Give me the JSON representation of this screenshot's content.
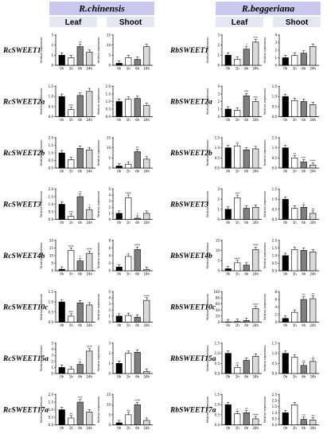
{
  "colors": {
    "band": "#c9c9ee",
    "subband": "#e3e8f2",
    "bar_0h": "#000000",
    "bar_1h": "#ffffff",
    "bar_6h": "#7f7f7f",
    "bar_24h": "#d9d9d9"
  },
  "species": [
    {
      "name": "R.chinensis",
      "tissues": [
        "Leaf",
        "Shoot"
      ]
    },
    {
      "name": "R.beggeriana",
      "tissues": [
        "Leaf",
        "Shoot"
      ]
    }
  ],
  "chart_data": {
    "type": "bar",
    "ylabel": "Relative expression",
    "categories": [
      "0h",
      "1h",
      "6h",
      "24h"
    ],
    "panels": [
      {
        "gene": "RcSWEET1",
        "leaf": {
          "values": [
            1.0,
            0.75,
            1.85,
            1.3
          ],
          "ylim": [
            0,
            3
          ],
          "ticks": [
            0,
            1,
            2,
            3
          ],
          "sig": [
            "",
            "",
            "**",
            ""
          ]
        },
        "shoot": {
          "values": [
            1.0,
            3.8,
            2.9,
            9.2
          ],
          "ylim": [
            0,
            15
          ],
          "ticks": [
            0,
            5,
            10,
            15
          ],
          "sig": [
            "",
            "",
            "",
            ""
          ]
        }
      },
      {
        "gene": "RcSWEET2a",
        "leaf": {
          "values": [
            1.0,
            0.35,
            1.05,
            1.25
          ],
          "ylim": [
            0,
            1.5
          ],
          "ticks": [
            0.0,
            0.5,
            1.0,
            1.5
          ],
          "sig": [
            "",
            "***",
            "",
            ""
          ]
        },
        "shoot": {
          "values": [
            1.0,
            1.15,
            1.2,
            0.75
          ],
          "ylim": [
            0,
            2
          ],
          "ticks": [
            0.0,
            0.5,
            1.0,
            1.5,
            2.0
          ],
          "sig": [
            "",
            "",
            "",
            ""
          ]
        }
      },
      {
        "gene": "RcSWEET2b",
        "leaf": {
          "values": [
            1.0,
            0.55,
            1.3,
            1.2
          ],
          "ylim": [
            0,
            2
          ],
          "ticks": [
            0.0,
            0.5,
            1.0,
            1.5,
            2.0
          ],
          "sig": [
            "",
            "",
            "",
            ""
          ]
        },
        "shoot": {
          "values": [
            1.0,
            1.9,
            8.1,
            4.4
          ],
          "ylim": [
            0,
            15
          ],
          "ticks": [
            0,
            5,
            10,
            15
          ],
          "sig": [
            "",
            "",
            "**",
            ""
          ]
        }
      },
      {
        "gene": "RcSWEET3",
        "leaf": {
          "values": [
            1.0,
            0.2,
            1.5,
            0.65
          ],
          "ylim": [
            0,
            2
          ],
          "ticks": [
            0.0,
            0.5,
            1.0,
            1.5,
            2.0
          ],
          "sig": [
            "",
            "***",
            "**",
            "*"
          ]
        },
        "shoot": {
          "values": [
            1.0,
            3.6,
            0.2,
            1.0
          ],
          "ylim": [
            0,
            5
          ],
          "ticks": [
            0,
            1,
            2,
            3,
            4,
            5
          ],
          "sig": [
            "",
            "****",
            "*",
            ""
          ]
        }
      },
      {
        "gene": "RcSWEET4b",
        "leaf": {
          "values": [
            1.0,
            13.5,
            6.5,
            11.5
          ],
          "ylim": [
            0,
            20
          ],
          "ticks": [
            0,
            5,
            10,
            15,
            20
          ],
          "sig": [
            "",
            "****",
            "*",
            "****"
          ]
        },
        "shoot": {
          "values": [
            1.0,
            3.8,
            5.6,
            0.3
          ],
          "ylim": [
            0,
            8
          ],
          "ticks": [
            0,
            2,
            4,
            6,
            8
          ],
          "sig": [
            "",
            "",
            "****",
            ""
          ]
        }
      },
      {
        "gene": "RcSWEET10c",
        "leaf": {
          "values": [
            1.0,
            0.3,
            0.95,
            0.85
          ],
          "ylim": [
            0,
            1.5
          ],
          "ticks": [
            0.0,
            0.5,
            1.0,
            1.5
          ],
          "sig": [
            "",
            "***",
            "",
            ""
          ]
        },
        "shoot": {
          "values": [
            1.0,
            1.1,
            0.8,
            3.6
          ],
          "ylim": [
            0,
            5
          ],
          "ticks": [
            0,
            1,
            2,
            3,
            4,
            5
          ],
          "sig": [
            "",
            "",
            "",
            "****"
          ]
        }
      },
      {
        "gene": "RcSWEET15a",
        "leaf": {
          "values": [
            1.0,
            0.7,
            1.5,
            3.7
          ],
          "ylim": [
            0,
            5
          ],
          "ticks": [
            0,
            1,
            2,
            3,
            4,
            5
          ],
          "sig": [
            "",
            "",
            "*",
            "****"
          ]
        },
        "shoot": {
          "values": [
            1.0,
            2.0,
            2.1,
            0.2
          ],
          "ylim": [
            0,
            3
          ],
          "ticks": [
            0,
            1,
            2,
            3
          ],
          "sig": [
            "",
            "",
            "",
            ""
          ]
        }
      },
      {
        "gene": "RcSWEET17a",
        "leaf": {
          "values": [
            1.0,
            0.45,
            1.5,
            0.85
          ],
          "ylim": [
            0,
            2
          ],
          "ticks": [
            0.0,
            0.5,
            1.0,
            1.5,
            2.0
          ],
          "sig": [
            "",
            "**",
            "***",
            ""
          ]
        },
        "shoot": {
          "values": [
            1.0,
            5.0,
            10.0,
            2.2
          ],
          "ylim": [
            0,
            15
          ],
          "ticks": [
            0,
            5,
            10,
            15
          ],
          "sig": [
            "",
            "**",
            "****",
            ""
          ]
        }
      },
      {
        "gene": "RbSWEET1",
        "leaf": {
          "values": [
            1.0,
            0.6,
            1.6,
            2.3
          ],
          "ylim": [
            0,
            3
          ],
          "ticks": [
            0,
            1,
            2,
            3
          ],
          "sig": [
            "",
            "",
            "*",
            "***"
          ]
        },
        "shoot": {
          "values": [
            1.0,
            1.3,
            1.6,
            2.5
          ],
          "ylim": [
            0,
            4
          ],
          "ticks": [
            0,
            1,
            2,
            3,
            4
          ],
          "sig": [
            "",
            "",
            "",
            ""
          ]
        }
      },
      {
        "gene": "RbSWEET2a",
        "leaf": {
          "values": [
            1.0,
            0.85,
            2.75,
            2.0
          ],
          "ylim": [
            0,
            4
          ],
          "ticks": [
            0,
            1,
            2,
            3,
            4
          ],
          "sig": [
            "",
            "",
            "***",
            "***"
          ]
        },
        "shoot": {
          "values": [
            1.0,
            0.8,
            0.75,
            0.6
          ],
          "ylim": [
            0,
            1.5
          ],
          "ticks": [
            0.0,
            0.5,
            1.0,
            1.5
          ],
          "sig": [
            "",
            "",
            "",
            ""
          ]
        }
      },
      {
        "gene": "RbSWEET2b",
        "leaf": {
          "values": [
            1.0,
            1.1,
            0.9,
            0.95
          ],
          "ylim": [
            0,
            1.5
          ],
          "ticks": [
            0.0,
            0.5,
            1.0,
            1.5
          ],
          "sig": [
            "",
            "",
            "",
            ""
          ]
        },
        "shoot": {
          "values": [
            1.0,
            0.5,
            0.3,
            0.15
          ],
          "ylim": [
            0,
            1.5
          ],
          "ticks": [
            0.0,
            0.5,
            1.0,
            1.5
          ],
          "sig": [
            "",
            "**",
            "***",
            "****"
          ]
        }
      },
      {
        "gene": "RbSWEET3",
        "leaf": {
          "values": [
            1.0,
            2.15,
            1.1,
            1.2
          ],
          "ylim": [
            0,
            3
          ],
          "ticks": [
            0,
            1,
            2,
            3
          ],
          "sig": [
            "",
            "***",
            "",
            ""
          ]
        },
        "shoot": {
          "values": [
            1.0,
            0.55,
            0.6,
            0.3
          ],
          "ylim": [
            0,
            1.5
          ],
          "ticks": [
            0.0,
            0.5,
            1.0,
            1.5
          ],
          "sig": [
            "",
            "",
            "*",
            "**"
          ]
        }
      },
      {
        "gene": "RbSWEET4b",
        "leaf": {
          "values": [
            1.0,
            4.0,
            2.8,
            10.5
          ],
          "ylim": [
            0,
            15
          ],
          "ticks": [
            0,
            5,
            10,
            15
          ],
          "sig": [
            "",
            "****",
            "",
            "****"
          ]
        },
        "shoot": {
          "values": [
            1.0,
            1.4,
            1.35,
            1.25
          ],
          "ylim": [
            0,
            2
          ],
          "ticks": [
            0.0,
            0.5,
            1.0,
            1.5,
            2.0
          ],
          "sig": [
            "",
            "",
            "",
            ""
          ]
        }
      },
      {
        "gene": "RbSWEET10c",
        "leaf": {
          "values": [
            1.0,
            2.0,
            5.0,
            45.0
          ],
          "ylim": [
            0,
            100
          ],
          "ticks": [
            0,
            20,
            40,
            60,
            80,
            100
          ],
          "sig": [
            "",
            "",
            "",
            "****"
          ]
        },
        "shoot": {
          "values": [
            1.0,
            2.6,
            6.0,
            6.2
          ],
          "ylim": [
            0,
            8
          ],
          "ticks": [
            0,
            2,
            4,
            6,
            8
          ],
          "sig": [
            "",
            "",
            "**",
            "**"
          ]
        }
      },
      {
        "gene": "RbSWEET15a",
        "leaf": {
          "values": [
            1.0,
            0.3,
            0.65,
            0.85
          ],
          "ylim": [
            0,
            1.5
          ],
          "ticks": [
            0.0,
            0.5,
            1.0,
            1.5
          ],
          "sig": [
            "",
            "**",
            "",
            ""
          ]
        },
        "shoot": {
          "values": [
            1.0,
            0.8,
            0.4,
            0.6
          ],
          "ylim": [
            0,
            1.5
          ],
          "ticks": [
            0.0,
            0.5,
            1.0,
            1.5
          ],
          "sig": [
            "",
            "",
            "**",
            "*"
          ]
        }
      },
      {
        "gene": "RbSWEET17a",
        "leaf": {
          "values": [
            1.0,
            0.55,
            0.6,
            0.3
          ],
          "ylim": [
            0,
            1.5
          ],
          "ticks": [
            0.0,
            0.5,
            1.0,
            1.5
          ],
          "sig": [
            "",
            "*",
            "**",
            "****"
          ]
        },
        "shoot": {
          "values": [
            1.0,
            1.65,
            0.45,
            0.4
          ],
          "ylim": [
            0,
            2.5
          ],
          "ticks": [
            0.0,
            0.5,
            1.0,
            1.5,
            2.0,
            2.5
          ],
          "sig": [
            "",
            "",
            "**",
            "**"
          ]
        }
      }
    ]
  }
}
